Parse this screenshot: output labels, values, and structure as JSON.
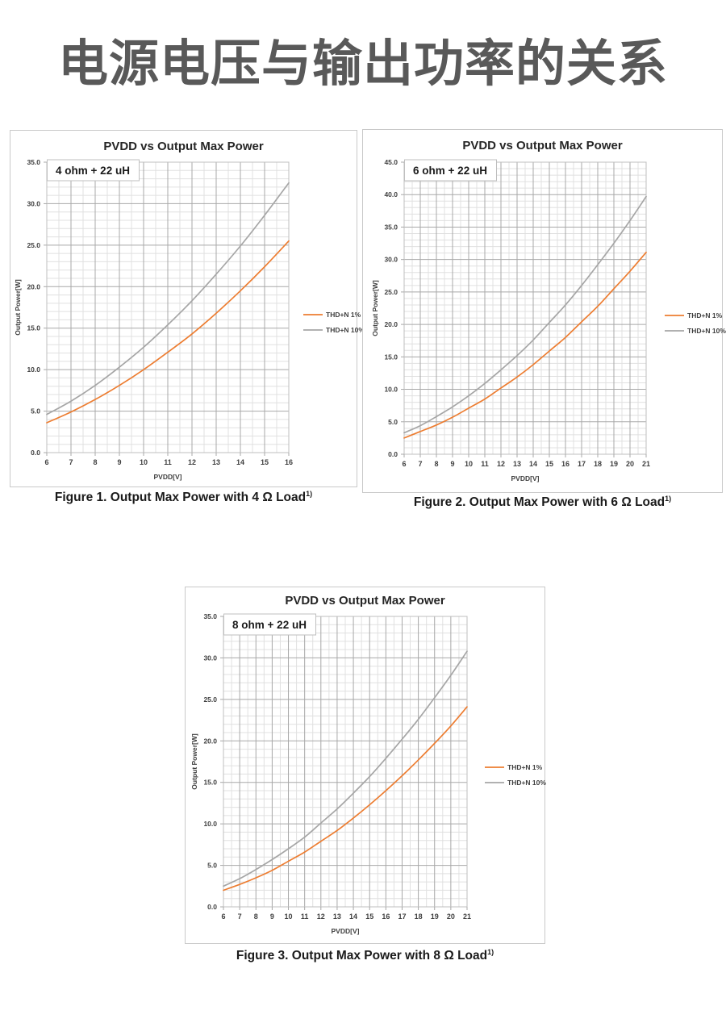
{
  "page": {
    "title": "电源电压与输出功率的关系"
  },
  "colors": {
    "series_orange": "#ED7D31",
    "series_gray": "#A6A6A6",
    "grid_major": "#a8a8a8",
    "grid_minor": "#e0e0e0",
    "plot_border": "#bfbfbf",
    "axis_text": "#3f3f3f",
    "title_gray": "#595959"
  },
  "chart_data": [
    {
      "type": "line",
      "title": "PVDD vs Output Max Power",
      "annotation": "4 ohm + 22 uH",
      "xlabel": "PVDD[V]",
      "ylabel": "Output Power[W]",
      "x": [
        6,
        7,
        8,
        9,
        10,
        11,
        12,
        13,
        14,
        15,
        16
      ],
      "xlim": [
        6,
        16
      ],
      "ylim": [
        0,
        35
      ],
      "x_major_step": 1,
      "x_minor_step": 0.5,
      "y_major_step": 5,
      "y_minor_step": 1,
      "grid": true,
      "legend_position": "right-middle",
      "series": [
        {
          "name": "THD+N 1%",
          "color": "#ED7D31",
          "values": [
            3.6,
            4.9,
            6.4,
            8.1,
            10.0,
            12.1,
            14.3,
            16.8,
            19.5,
            22.4,
            25.5
          ]
        },
        {
          "name": "THD+N 10%",
          "color": "#A6A6A6",
          "values": [
            4.6,
            6.2,
            8.1,
            10.3,
            12.7,
            15.4,
            18.3,
            21.5,
            24.9,
            28.6,
            32.5
          ]
        }
      ],
      "caption": "Figure 1. Output Max Power with 4 Ω Load",
      "caption_sup": "1)"
    },
    {
      "type": "line",
      "title": "PVDD vs Output Max Power",
      "annotation": "6 ohm + 22 uH",
      "xlabel": "PVDD[V]",
      "ylabel": "Output Power[W]",
      "x": [
        6,
        7,
        8,
        9,
        10,
        11,
        12,
        13,
        14,
        15,
        16,
        17,
        18,
        19,
        20,
        21
      ],
      "xlim": [
        6,
        21
      ],
      "ylim": [
        0,
        45
      ],
      "x_major_step": 1,
      "x_minor_step": 0.5,
      "y_major_step": 5,
      "y_minor_step": 1,
      "grid": true,
      "legend_position": "right-middle",
      "series": [
        {
          "name": "THD+N 1%",
          "color": "#ED7D31",
          "values": [
            2.5,
            3.5,
            4.5,
            5.7,
            7.1,
            8.5,
            10.2,
            11.9,
            13.8,
            15.9,
            18.0,
            20.4,
            22.8,
            25.5,
            28.2,
            31.1
          ]
        },
        {
          "name": "THD+N 10%",
          "color": "#A6A6A6",
          "values": [
            3.3,
            4.4,
            5.8,
            7.3,
            9.0,
            10.9,
            13.0,
            15.2,
            17.6,
            20.3,
            23.0,
            26.0,
            29.2,
            32.5,
            36.0,
            39.7
          ]
        }
      ],
      "caption": "Figure 2. Output Max Power with 6 Ω Load",
      "caption_sup": "1)"
    },
    {
      "type": "line",
      "title": "PVDD vs Output Max Power",
      "annotation": "8 ohm + 22 uH",
      "xlabel": "PVDD[V]",
      "ylabel": "Output Power[W]",
      "x": [
        6,
        7,
        8,
        9,
        10,
        11,
        12,
        13,
        14,
        15,
        16,
        17,
        18,
        19,
        20,
        21
      ],
      "xlim": [
        6,
        21
      ],
      "ylim": [
        0,
        35
      ],
      "x_major_step": 1,
      "x_minor_step": 0.5,
      "y_major_step": 5,
      "y_minor_step": 1,
      "grid": true,
      "legend_position": "right-middle",
      "series": [
        {
          "name": "THD+N 1%",
          "color": "#ED7D31",
          "values": [
            2.0,
            2.7,
            3.5,
            4.4,
            5.5,
            6.6,
            7.9,
            9.2,
            10.7,
            12.3,
            14.0,
            15.8,
            17.7,
            19.7,
            21.8,
            24.1
          ]
        },
        {
          "name": "THD+N 10%",
          "color": "#A6A6A6",
          "values": [
            2.5,
            3.4,
            4.5,
            5.7,
            7.0,
            8.4,
            10.1,
            11.8,
            13.7,
            15.7,
            17.9,
            20.2,
            22.6,
            25.2,
            27.9,
            30.8
          ]
        }
      ],
      "caption": "Figure 3. Output Max Power with 8 Ω Load",
      "caption_sup": "1)"
    }
  ]
}
